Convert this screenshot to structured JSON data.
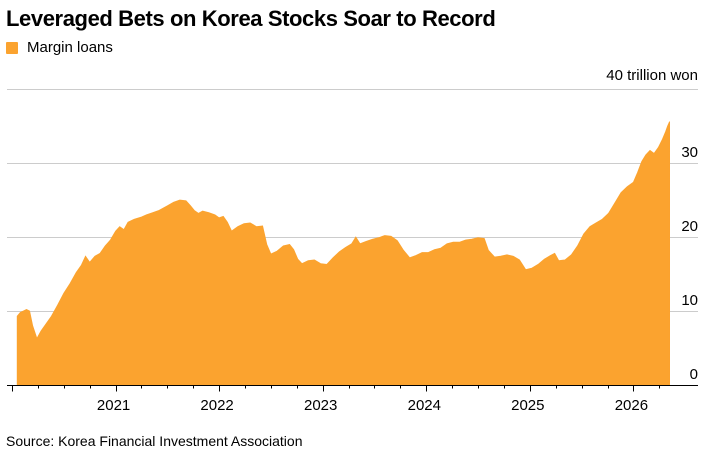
{
  "colors": {
    "accent": "#fba32f",
    "grid": "#cccccc",
    "axis": "#000000"
  },
  "chart_data": {
    "type": "area",
    "title": "Leveraged Bets on Korea Stocks Soar to Record",
    "legend": [
      {
        "name": "Margin loans",
        "color": "#fba32f"
      }
    ],
    "unit_label": "40 trillion won",
    "source": "Source: Korea Financial Investment Association",
    "ylim": [
      0,
      40
    ],
    "yticks": [
      {
        "value": 0,
        "label": "0"
      },
      {
        "value": 10,
        "label": "10"
      },
      {
        "value": 20,
        "label": "20"
      },
      {
        "value": 30,
        "label": "30"
      }
    ],
    "xlim": [
      2020.0,
      2026.45
    ],
    "xticks": [
      {
        "value": 2021,
        "label": "2021"
      },
      {
        "value": 2022,
        "label": "2022"
      },
      {
        "value": 2023,
        "label": "2023"
      },
      {
        "value": 2024,
        "label": "2024"
      },
      {
        "value": 2025,
        "label": "2025"
      },
      {
        "value": 2026,
        "label": "2026"
      }
    ],
    "grid": true,
    "series": [
      {
        "name": "Margin loans",
        "color": "#fba32f",
        "points": [
          [
            2020.05,
            9.3
          ],
          [
            2020.08,
            9.8
          ],
          [
            2020.11,
            10.0
          ],
          [
            2020.14,
            10.2
          ],
          [
            2020.17,
            10.0
          ],
          [
            2020.2,
            8.0
          ],
          [
            2020.24,
            6.3
          ],
          [
            2020.28,
            7.3
          ],
          [
            2020.33,
            8.3
          ],
          [
            2020.38,
            9.3
          ],
          [
            2020.44,
            10.8
          ],
          [
            2020.5,
            12.4
          ],
          [
            2020.56,
            13.7
          ],
          [
            2020.62,
            15.2
          ],
          [
            2020.67,
            16.2
          ],
          [
            2020.71,
            17.4
          ],
          [
            2020.75,
            16.6
          ],
          [
            2020.8,
            17.4
          ],
          [
            2020.85,
            17.8
          ],
          [
            2020.9,
            18.8
          ],
          [
            2020.95,
            19.6
          ],
          [
            2021.0,
            20.8
          ],
          [
            2021.04,
            21.4
          ],
          [
            2021.08,
            21.0
          ],
          [
            2021.12,
            22.0
          ],
          [
            2021.18,
            22.4
          ],
          [
            2021.25,
            22.7
          ],
          [
            2021.3,
            23.0
          ],
          [
            2021.36,
            23.3
          ],
          [
            2021.42,
            23.6
          ],
          [
            2021.5,
            24.2
          ],
          [
            2021.56,
            24.7
          ],
          [
            2021.62,
            25.0
          ],
          [
            2021.68,
            24.9
          ],
          [
            2021.72,
            24.3
          ],
          [
            2021.76,
            23.6
          ],
          [
            2021.8,
            23.2
          ],
          [
            2021.84,
            23.5
          ],
          [
            2021.9,
            23.3
          ],
          [
            2021.96,
            23.0
          ],
          [
            2022.0,
            22.6
          ],
          [
            2022.04,
            22.8
          ],
          [
            2022.08,
            22.0
          ],
          [
            2022.12,
            20.8
          ],
          [
            2022.18,
            21.4
          ],
          [
            2022.24,
            21.8
          ],
          [
            2022.3,
            21.9
          ],
          [
            2022.36,
            21.4
          ],
          [
            2022.42,
            21.5
          ],
          [
            2022.46,
            19.0
          ],
          [
            2022.5,
            17.7
          ],
          [
            2022.56,
            18.1
          ],
          [
            2022.62,
            18.8
          ],
          [
            2022.68,
            19.0
          ],
          [
            2022.72,
            18.3
          ],
          [
            2022.76,
            17.0
          ],
          [
            2022.8,
            16.4
          ],
          [
            2022.86,
            16.8
          ],
          [
            2022.92,
            16.9
          ],
          [
            2022.98,
            16.4
          ],
          [
            2023.04,
            16.3
          ],
          [
            2023.1,
            17.2
          ],
          [
            2023.16,
            18.0
          ],
          [
            2023.22,
            18.6
          ],
          [
            2023.28,
            19.1
          ],
          [
            2023.32,
            20.0
          ],
          [
            2023.36,
            19.1
          ],
          [
            2023.42,
            19.4
          ],
          [
            2023.48,
            19.7
          ],
          [
            2023.54,
            19.9
          ],
          [
            2023.6,
            20.2
          ],
          [
            2023.66,
            20.1
          ],
          [
            2023.72,
            19.5
          ],
          [
            2023.78,
            18.2
          ],
          [
            2023.84,
            17.2
          ],
          [
            2023.9,
            17.5
          ],
          [
            2023.96,
            17.9
          ],
          [
            2024.02,
            17.9
          ],
          [
            2024.08,
            18.3
          ],
          [
            2024.14,
            18.5
          ],
          [
            2024.2,
            19.1
          ],
          [
            2024.26,
            19.3
          ],
          [
            2024.32,
            19.3
          ],
          [
            2024.38,
            19.6
          ],
          [
            2024.44,
            19.7
          ],
          [
            2024.5,
            19.9
          ],
          [
            2024.56,
            19.8
          ],
          [
            2024.6,
            18.2
          ],
          [
            2024.66,
            17.3
          ],
          [
            2024.72,
            17.4
          ],
          [
            2024.78,
            17.6
          ],
          [
            2024.84,
            17.4
          ],
          [
            2024.9,
            16.9
          ],
          [
            2024.96,
            15.6
          ],
          [
            2025.02,
            15.8
          ],
          [
            2025.08,
            16.3
          ],
          [
            2025.14,
            17.0
          ],
          [
            2025.2,
            17.5
          ],
          [
            2025.24,
            17.8
          ],
          [
            2025.28,
            16.8
          ],
          [
            2025.34,
            16.9
          ],
          [
            2025.4,
            17.6
          ],
          [
            2025.46,
            18.8
          ],
          [
            2025.52,
            20.4
          ],
          [
            2025.58,
            21.4
          ],
          [
            2025.64,
            21.9
          ],
          [
            2025.7,
            22.4
          ],
          [
            2025.76,
            23.2
          ],
          [
            2025.82,
            24.6
          ],
          [
            2025.88,
            26.0
          ],
          [
            2025.94,
            26.8
          ],
          [
            2026.0,
            27.4
          ],
          [
            2026.04,
            28.7
          ],
          [
            2026.08,
            30.2
          ],
          [
            2026.12,
            31.1
          ],
          [
            2026.16,
            31.7
          ],
          [
            2026.2,
            31.3
          ],
          [
            2026.24,
            32.1
          ],
          [
            2026.28,
            33.2
          ],
          [
            2026.31,
            34.2
          ],
          [
            2026.33,
            35.0
          ],
          [
            2026.35,
            35.6
          ]
        ]
      }
    ]
  }
}
